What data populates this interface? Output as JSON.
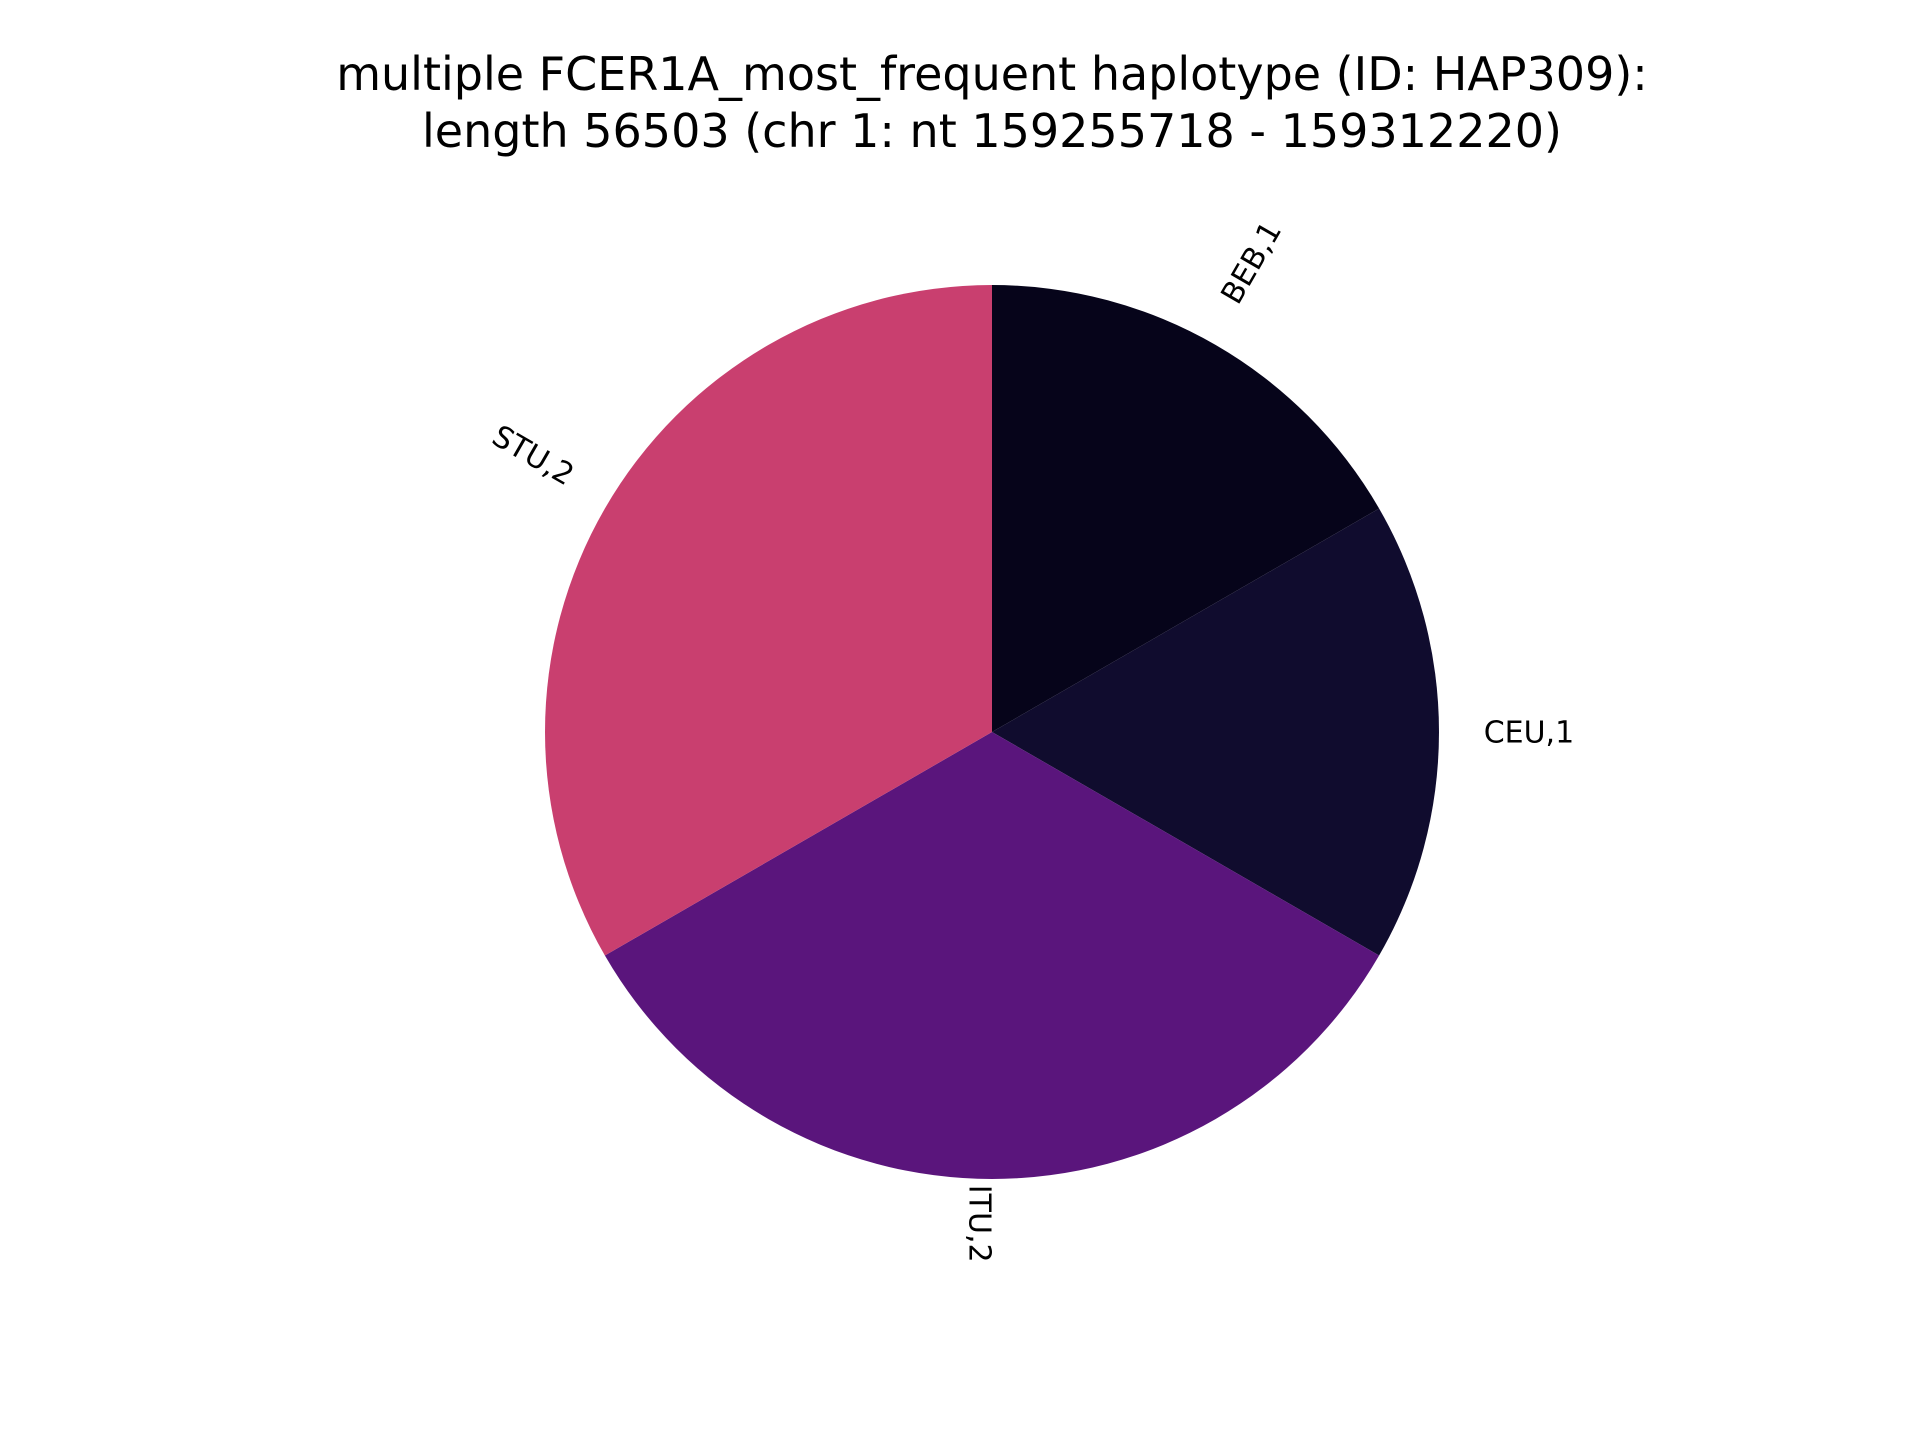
{
  "chart_data": {
    "type": "pie",
    "title": "multiple FCER1A_most_frequent haplotype (ID: HAP309):",
    "subtitle": "length 56503 (chr 1: nt 159255718 - 159312220)",
    "start_angle_deg": 90,
    "direction": "clockwise",
    "slices": [
      {
        "name": "BEB",
        "value": 1,
        "label": "BEB,1",
        "color": "#06041a"
      },
      {
        "name": "CEU",
        "value": 1,
        "label": "CEU,1",
        "color": "#100c2e"
      },
      {
        "name": "ITU",
        "value": 2,
        "label": "ITU,2",
        "color": "#5a157c"
      },
      {
        "name": "STU",
        "value": 2,
        "label": "STU,2",
        "color": "#c93f6f"
      }
    ]
  }
}
